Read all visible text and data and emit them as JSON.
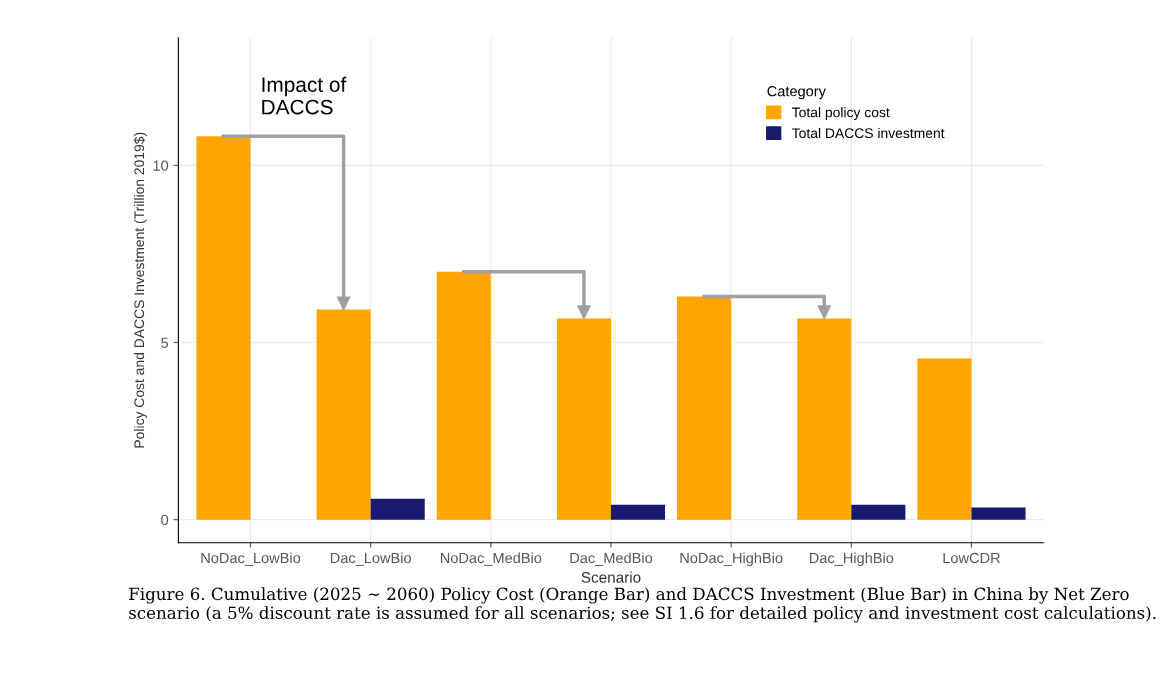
{
  "chart_data": {
    "type": "bar",
    "xlabel": "Scenario",
    "ylabel": "Policy Cost and DACCS Investment (Trillion 2019$)",
    "categories": [
      "NoDac_LowBio",
      "Dac_LowBio",
      "NoDac_MedBio",
      "Dac_MedBio",
      "NoDac_HighBio",
      "Dac_HighBio",
      "LowCDR"
    ],
    "series": [
      {
        "name": "Total policy cost",
        "color": "#ffa500",
        "values": [
          10.82,
          5.93,
          7.0,
          5.68,
          6.3,
          5.68,
          4.55
        ]
      },
      {
        "name": "Total DACCS investment",
        "color": "#191970",
        "values": [
          null,
          0.59,
          null,
          0.42,
          null,
          0.42,
          0.34
        ]
      }
    ],
    "ylim": [
      -0.65,
      13.6
    ],
    "yticks": [
      0,
      5,
      10
    ],
    "grid": true,
    "legend": "top right",
    "legend_title": "Category",
    "annotations": [
      "Impact of\nDACCS",
      "Figure 6. Cumulative (2025 ∼ 2060) Policy Cost (Orange Bar) and DACCS Investment (Blue Bar) in China by Net Zero scenario (a 5% discount rate is assumed for all scenarios; see SI 1.6 for detailed policy and investment cost calculations)."
    ]
  }
}
